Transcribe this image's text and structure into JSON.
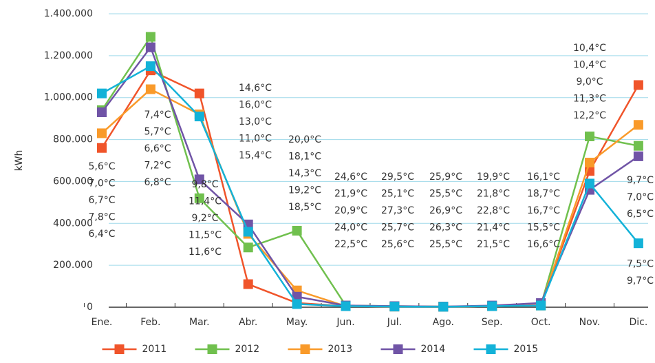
{
  "chart_data": {
    "type": "line",
    "y_label": "kWh",
    "categories": [
      "Ene.",
      "Feb.",
      "Mar.",
      "Abr.",
      "May.",
      "Jun.",
      "Jul.",
      "Ago.",
      "Sep.",
      "Oct.",
      "Nov.",
      "Dic."
    ],
    "ylim": [
      0,
      1400000
    ],
    "yticks": [
      0,
      {
        "value": 200000,
        "label": "200.000"
      },
      {
        "value": 400000,
        "label": "400.000"
      },
      {
        "value": 600000,
        "label": "600.000"
      },
      {
        "value": 800000,
        "label": "800.000"
      },
      {
        "value": 1000000,
        "label": "1.000.000"
      },
      {
        "value": 1200000,
        "label": "1.200.000"
      },
      {
        "value": 1400000,
        "label": "1.400.000"
      }
    ],
    "grid": true,
    "legend": "bottom",
    "series": [
      {
        "name": "2011",
        "color": "#f0542a",
        "values": [
          760000,
          1130000,
          1020000,
          110000,
          20000,
          5000,
          3000,
          2000,
          5000,
          10000,
          650000,
          1060000
        ],
        "temperatures": [
          "5,6°C",
          "7,4°C",
          "9,8°C",
          "15,4°C",
          "18,5°C",
          "22,5°C",
          "25,6°C",
          "25,5°C",
          "21,5°C",
          "16,6°C",
          "10,4°C",
          "9,7°C"
        ]
      },
      {
        "name": "2012",
        "color": "#70c04e",
        "values": [
          940000,
          1290000,
          520000,
          285000,
          365000,
          8000,
          5000,
          3000,
          5000,
          8000,
          815000,
          770000
        ],
        "temperatures": [
          "7,0°C",
          "5,7°C",
          "11,4°C",
          "11,0°C",
          "19,2°C",
          "24,0°C",
          "25,7°C",
          "26,3°C",
          "21,4°C",
          "15,5°C",
          "10,4°C",
          "7,0°C"
        ]
      },
      {
        "name": "2013",
        "color": "#f99a2a",
        "values": [
          830000,
          1040000,
          920000,
          350000,
          80000,
          5000,
          3000,
          2000,
          5000,
          8000,
          690000,
          870000
        ],
        "temperatures": [
          "6,7°C",
          "6,6°C",
          "9,2°C",
          "13,0°C",
          "14,3°C",
          "20,9°C",
          "27,3°C",
          "26,9°C",
          "22,8°C",
          "16,7°C",
          "9,0°C",
          "6,5°C"
        ]
      },
      {
        "name": "2014",
        "color": "#7054a6",
        "values": [
          930000,
          1240000,
          610000,
          395000,
          50000,
          8000,
          5000,
          3000,
          8000,
          20000,
          560000,
          720000
        ],
        "temperatures": [
          "7,8°C",
          "7,2°C",
          "11,5°C",
          "16,0°C",
          "18,1°C",
          "21,9°C",
          "25,1°C",
          "25,5°C",
          "21,8°C",
          "18,7°C",
          "11,3°C",
          "7,5°C"
        ]
      },
      {
        "name": "2015",
        "color": "#13b2d8",
        "values": [
          1020000,
          1150000,
          910000,
          360000,
          15000,
          5000,
          3000,
          2000,
          5000,
          8000,
          590000,
          305000
        ],
        "temperatures": [
          "6,4°C",
          "6,8°C",
          "11,6°C",
          "14,6°C",
          "20,0°C",
          "24,6°C",
          "29,5°C",
          "25,9°C",
          "19,9°C",
          "16,1°C",
          "12,2°C",
          "9,7°C"
        ]
      }
    ]
  }
}
